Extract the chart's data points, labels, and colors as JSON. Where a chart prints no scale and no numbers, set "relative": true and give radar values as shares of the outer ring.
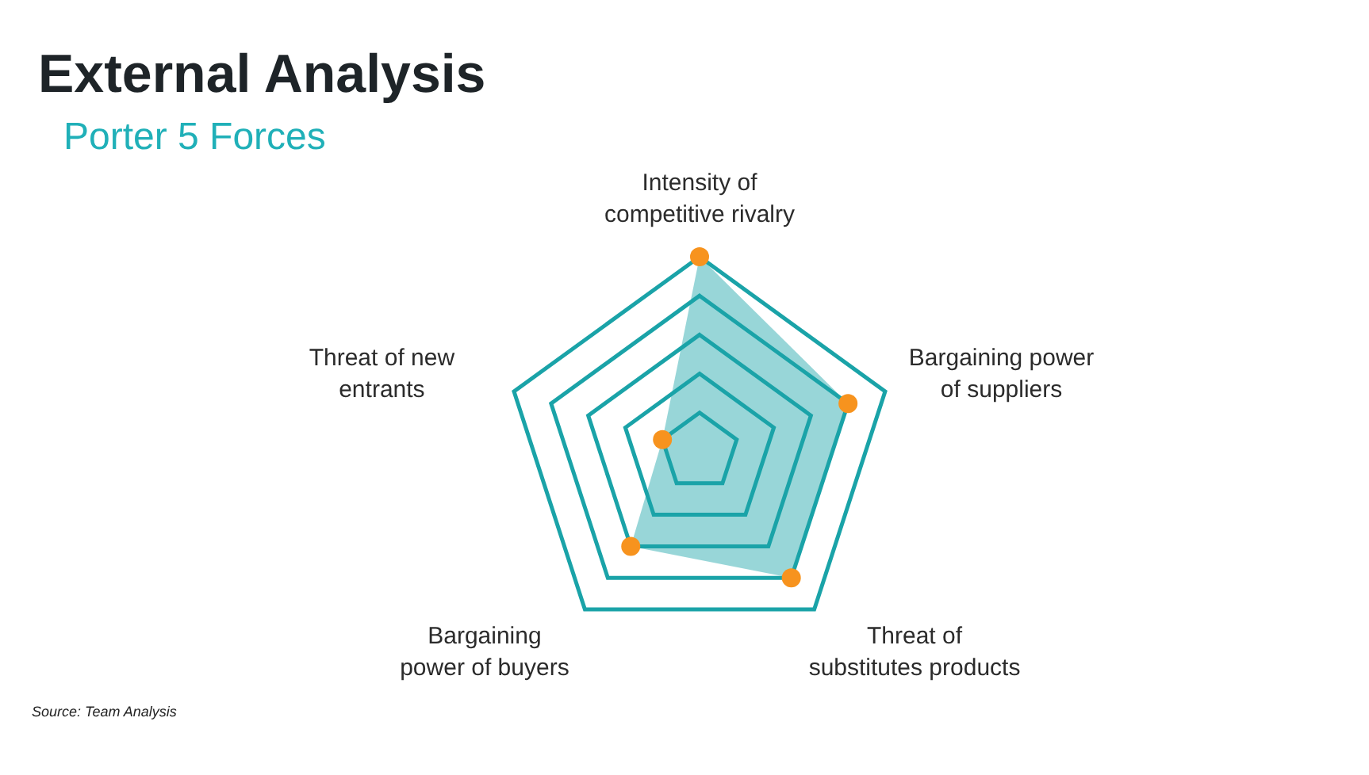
{
  "chart_data": {
    "type": "radar",
    "title": "External Analysis",
    "subtitle": "Porter 5 Forces",
    "categories": [
      "Intensity of\ncompetitive rivalry",
      "Bargaining power\nof suppliers",
      "Threat of\nsubstitutes products",
      "Bargaining\npower of buyers",
      "Threat of new\nentrants"
    ],
    "series": [
      {
        "color": "#1aa3a8",
        "values": [
          1,
          0.8,
          0.8,
          0.6,
          0.2
        ]
      }
    ],
    "relative": true,
    "grid": true,
    "marker": "circle",
    "annotations": [
      "Source: Team Analysis"
    ]
  }
}
